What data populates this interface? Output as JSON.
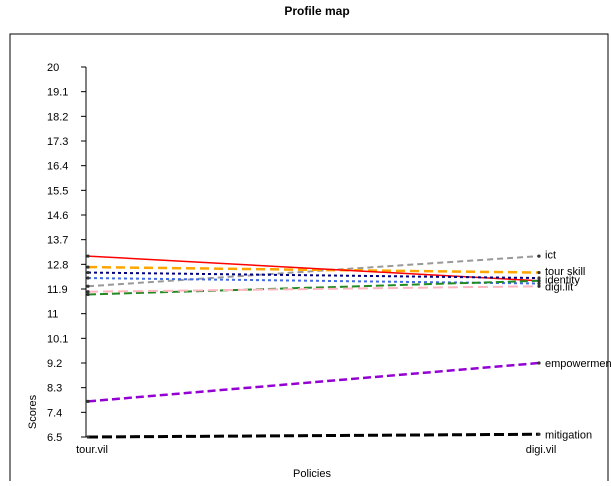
{
  "chart_data": {
    "type": "line",
    "title": "Profile map",
    "xlabel": "Policies",
    "ylabel": "Scores",
    "categories": [
      "tour.vil",
      "digi.vil"
    ],
    "yticks": [
      "20",
      "19.1",
      "18.2",
      "17.3",
      "16.4",
      "15.5",
      "14.6",
      "13.7",
      "12.8",
      "11.9",
      "11",
      "10.1",
      "9.2",
      "8.3",
      "7.4",
      "6.5"
    ],
    "ylim": [
      6.5,
      20
    ],
    "grid": false,
    "legend": "none",
    "series": [
      {
        "name": "ict",
        "values": [
          12.0,
          13.1
        ],
        "color": "#999999",
        "dash": "6,4",
        "width": 2
      },
      {
        "name": "tour skill",
        "values": [
          12.7,
          12.5
        ],
        "color": "#ffa500",
        "dash": "9,5",
        "width": 2.5
      },
      {
        "name": "",
        "values": [
          13.1,
          12.2
        ],
        "color": "#ff0000",
        "dash": "",
        "width": 1.5
      },
      {
        "name": "",
        "values": [
          12.5,
          12.3
        ],
        "color": "#000080",
        "dash": "3,3",
        "width": 2
      },
      {
        "name": "",
        "values": [
          12.3,
          12.1
        ],
        "color": "#4169e1",
        "dash": "3,3",
        "width": 2
      },
      {
        "name": "",
        "values": [
          11.7,
          12.2
        ],
        "color": "#228b22",
        "dash": "8,4",
        "width": 2
      },
      {
        "name": "digi.lit",
        "values": [
          11.8,
          12.0
        ],
        "color": "#ffb6c1",
        "dash": "10,5",
        "width": 2
      },
      {
        "name": "empowerment",
        "values": [
          7.8,
          9.2
        ],
        "color": "#9400d3",
        "dash": "8,4",
        "width": 2.5
      },
      {
        "name": "mitigation",
        "values": [
          6.5,
          6.6
        ],
        "color": "#000000",
        "dash": "10,4",
        "width": 3
      }
    ],
    "end_labels": [
      "ict",
      "tour skill",
      "identity",
      "digi.lit",
      "empowerment",
      "mitigation"
    ]
  }
}
